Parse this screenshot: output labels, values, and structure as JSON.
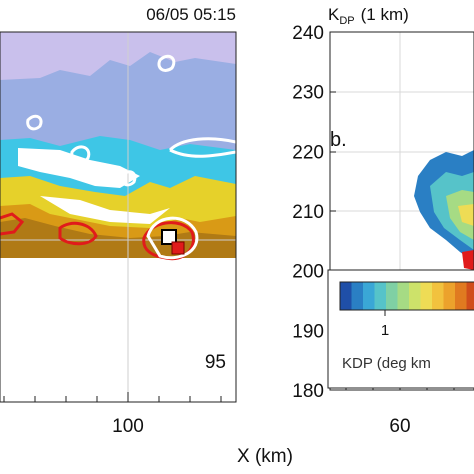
{
  "chart_data": [
    {
      "type": "heatmap",
      "title": "06/05 05:15",
      "xlabel": "X (km)",
      "x_tick_labels": [
        "100"
      ],
      "panel_number": "95",
      "colors": {
        "background_field": "#c9c0ec",
        "mid_field": "#9aaee3",
        "cyan": "#3ec6e6",
        "yellow": "#e6d12a",
        "orange": "#d99a16",
        "brown": "#b07a15",
        "red_contour": "#e01b1b",
        "white_contour": "#ffffff",
        "grid": "#cfcfcf"
      }
    },
    {
      "type": "heatmap",
      "title": "K",
      "title_sub": "DP",
      "title_suffix": "(1 km)",
      "panel_letter": "b.",
      "y_ticks": [
        180,
        190,
        200,
        210,
        220,
        230,
        240
      ],
      "ylim": [
        180,
        240
      ],
      "x_tick_labels": [
        "60"
      ],
      "colorbar": {
        "label": "KDP (deg km",
        "tick_labels": [
          "1"
        ],
        "colors": [
          "#1f4fa8",
          "#2a7fc4",
          "#3aa7d6",
          "#56c3c9",
          "#7fd0a4",
          "#a6db84",
          "#cde26a",
          "#eedc55",
          "#f2c23e",
          "#eca22c",
          "#e07a20",
          "#d04d1b"
        ]
      }
    }
  ]
}
